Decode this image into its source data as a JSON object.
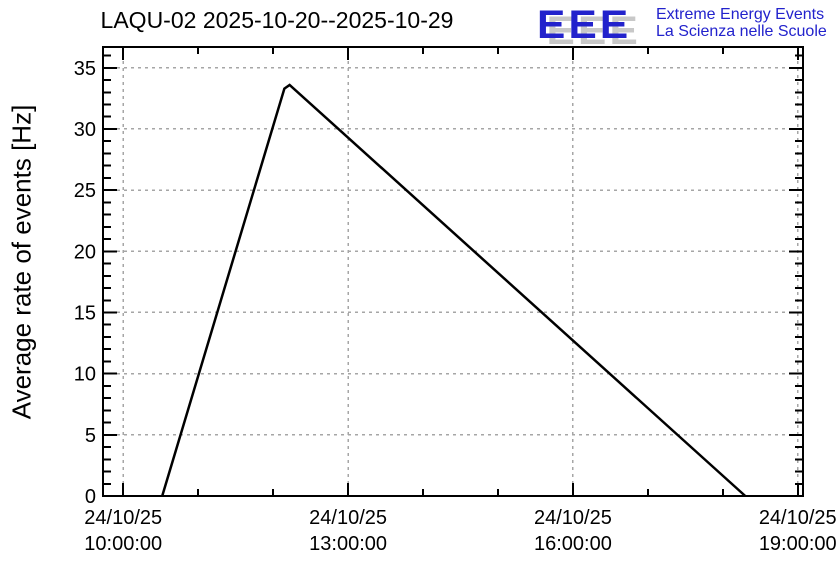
{
  "header": {
    "title": "LAQU-02 2025-10-20--2025-10-29"
  },
  "logo": {
    "acronym": "EEE",
    "tagline_line1": "Extreme Energy Events",
    "tagline_line2": "La Scienza nelle Scuole",
    "accent_blue": "#2222cc",
    "shadow_gray": "#c8c8c8"
  },
  "chart_data": {
    "type": "line",
    "title": "LAQU-02 2025-10-20--2025-10-29",
    "station": "LAQU-02",
    "date_range": "2025-10-20--2025-10-29",
    "ylabel": "Average rate of events [Hz]",
    "xlabel": "",
    "grid": true,
    "legend": "none",
    "line_color": "#000000",
    "grid_color": "#a6a6a6",
    "frame_color": "#000000",
    "ylim": [
      0,
      36.7
    ],
    "y_major_ticks": [
      0,
      5,
      10,
      15,
      20,
      25,
      30,
      35
    ],
    "y_minor_step": 1,
    "xlim_hours": [
      9.73,
      19.07
    ],
    "x_minor_step_hours": 1,
    "x_major_ticks": [
      {
        "hour": 10,
        "label_line1": "24/10/25",
        "label_line2": "10:00:00"
      },
      {
        "hour": 13,
        "label_line1": "24/10/25",
        "label_line2": "13:00:00"
      },
      {
        "hour": 16,
        "label_line1": "24/10/25",
        "label_line2": "16:00:00"
      },
      {
        "hour": 19,
        "label_line1": "24/10/25",
        "label_line2": "19:00:00"
      }
    ],
    "series": [
      {
        "name": "average-rate",
        "points": [
          {
            "time": "24/10/25 10:31:00",
            "hour": 10.52,
            "hz": 0
          },
          {
            "time": "24/10/25 12:09:00",
            "hour": 12.15,
            "hz": 33.3
          },
          {
            "time": "24/10/25 12:13:00",
            "hour": 12.22,
            "hz": 33.6
          },
          {
            "time": "24/10/25 18:18:00",
            "hour": 18.3,
            "hz": 0
          }
        ]
      }
    ]
  }
}
